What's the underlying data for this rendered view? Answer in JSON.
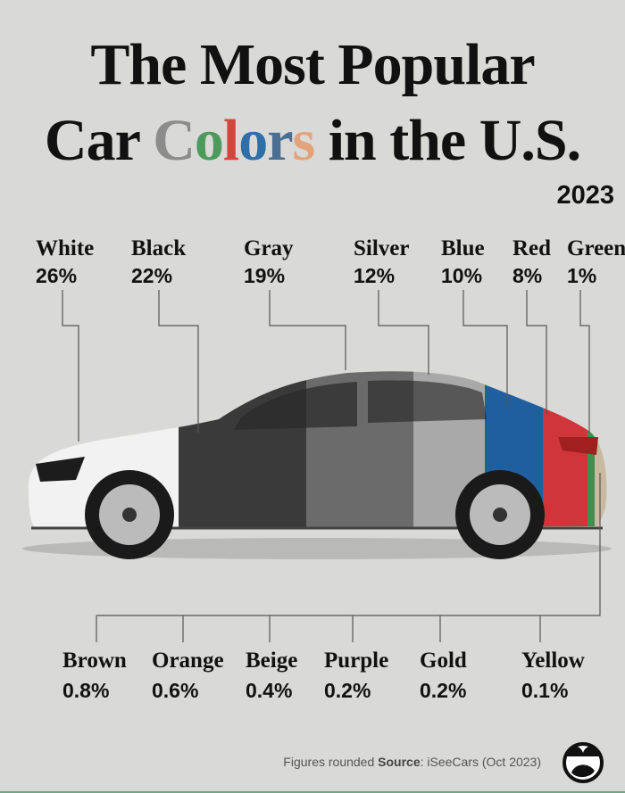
{
  "title": {
    "line1": "The Most Popular",
    "line2_prefix": "Car ",
    "line2_colored": [
      "C",
      "o",
      "l",
      "o",
      "r",
      "s"
    ],
    "line2_colored_colors": [
      "#8c8c8c",
      "#4d9a5c",
      "#d2463e",
      "#2f6ea6",
      "#4a6f93",
      "#e3a37a"
    ],
    "line2_suffix": " in the U.S."
  },
  "year": "2023",
  "chart_data": {
    "type": "bar",
    "title": "The Most Popular Car Colors in the U.S.",
    "subtitle": "2023",
    "categories": [
      "White",
      "Black",
      "Gray",
      "Silver",
      "Blue",
      "Red",
      "Green",
      "Brown",
      "Orange",
      "Beige",
      "Purple",
      "Gold",
      "Yellow"
    ],
    "values": [
      26,
      22,
      19,
      12,
      10,
      8,
      1,
      0.8,
      0.6,
      0.4,
      0.2,
      0.2,
      0.1
    ],
    "labels": [
      "26%",
      "22%",
      "19%",
      "12%",
      "10%",
      "8%",
      "1%",
      "0.8%",
      "0.6%",
      "0.4%",
      "0.2%",
      "0.2%",
      "0.1%"
    ],
    "colors": {
      "White": "#f2f2f2",
      "Black": "#3a3a3a",
      "Gray": "#6b6b6b",
      "Silver": "#a9a9a9",
      "Blue": "#1f5fa0",
      "Red": "#d0353a",
      "Green": "#3f8f4f"
    },
    "unit": "%"
  },
  "footer": {
    "note": "Figures rounded ",
    "source_label": "Source",
    "source_text": ": iSeeCars (Oct 2023)"
  }
}
